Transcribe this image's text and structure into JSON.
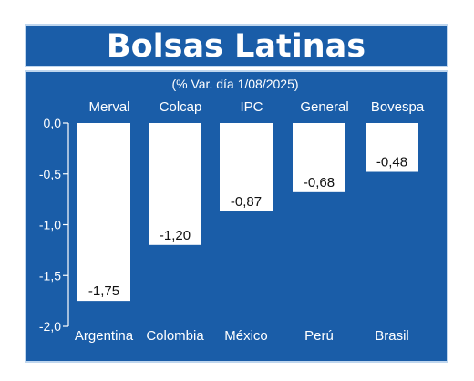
{
  "colors": {
    "panel": "#1a5da8",
    "border": "#bfd6ee",
    "bar": "#ffffff",
    "text": "#ffffff",
    "value_text": "#111111"
  },
  "chart_data": {
    "type": "bar",
    "title": "Bolsas Latinas",
    "subtitle": "(% Var. día 1/08/2025)",
    "index_labels": [
      "Merval",
      "Colcap",
      "IPC",
      "General",
      "Bovespa"
    ],
    "categories": [
      "Argentina",
      "Colombia",
      "México",
      "Perú",
      "Brasil"
    ],
    "values": [
      -1.75,
      -1.2,
      -0.87,
      -0.68,
      -0.48
    ],
    "value_labels": [
      "-1,75",
      "-1,20",
      "-0,87",
      "-0,68",
      "-0,48"
    ],
    "y_ticks": [
      "0,0",
      "-0,5",
      "-1,0",
      "-1,5",
      "-2,0"
    ],
    "y_tick_values": [
      0,
      -0.5,
      -1.0,
      -1.5,
      -2.0
    ],
    "ylim": [
      -2.0,
      0
    ],
    "grid": false,
    "legend": "none"
  }
}
